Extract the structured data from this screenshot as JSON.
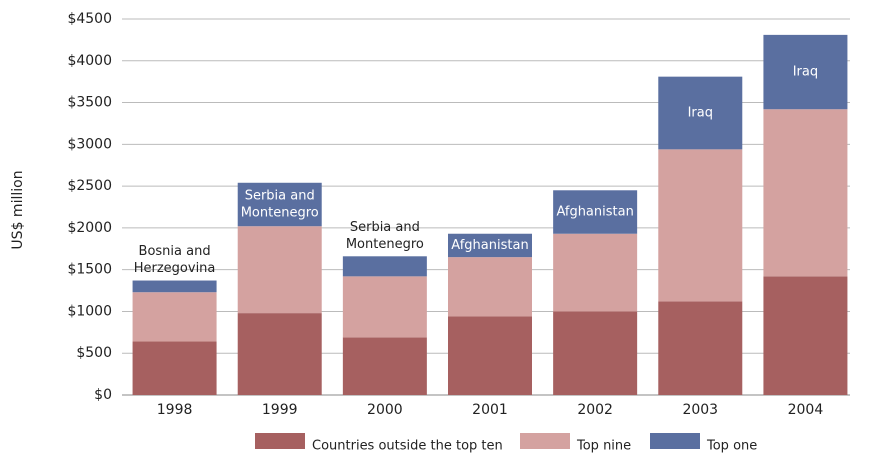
{
  "chart_data": {
    "type": "stacked_bar",
    "y_label": "US$ million",
    "categories": [
      "1998",
      "1999",
      "2000",
      "2001",
      "2002",
      "2003",
      "2004"
    ],
    "series": [
      {
        "name": "Countries outside the top ten",
        "color": "#a66060",
        "values": [
          640,
          980,
          690,
          940,
          1000,
          1120,
          1420
        ]
      },
      {
        "name": "Top nine",
        "color": "#d4a2a0",
        "values": [
          590,
          1040,
          730,
          710,
          930,
          1820,
          2000
        ]
      },
      {
        "name": "Top one",
        "color": "#5a6fa0",
        "values": [
          140,
          520,
          240,
          280,
          520,
          870,
          890
        ]
      }
    ],
    "top_one_labels": [
      [
        "Bosnia and",
        "Herzegovina"
      ],
      [
        "Serbia and",
        "Montenegro"
      ],
      [
        "Serbia and",
        "Montenegro"
      ],
      [
        "Afghanistan"
      ],
      [
        "Afghanistan"
      ],
      [
        "Iraq"
      ],
      [
        "Iraq"
      ]
    ],
    "ylim": [
      0,
      4500
    ],
    "yticks": [
      {
        "value": 0,
        "label": "$0"
      },
      {
        "value": 500,
        "label": "$500"
      },
      {
        "value": 1000,
        "label": "$1000"
      },
      {
        "value": 1500,
        "label": "$1500"
      },
      {
        "value": 2000,
        "label": "$2000"
      },
      {
        "value": 2500,
        "label": "$2500"
      },
      {
        "value": 3000,
        "label": "$3000"
      },
      {
        "value": 3500,
        "label": "$3500"
      },
      {
        "value": 4000,
        "label": "$4000"
      },
      {
        "value": 4500,
        "label": "$4500"
      }
    ],
    "grid": true
  }
}
